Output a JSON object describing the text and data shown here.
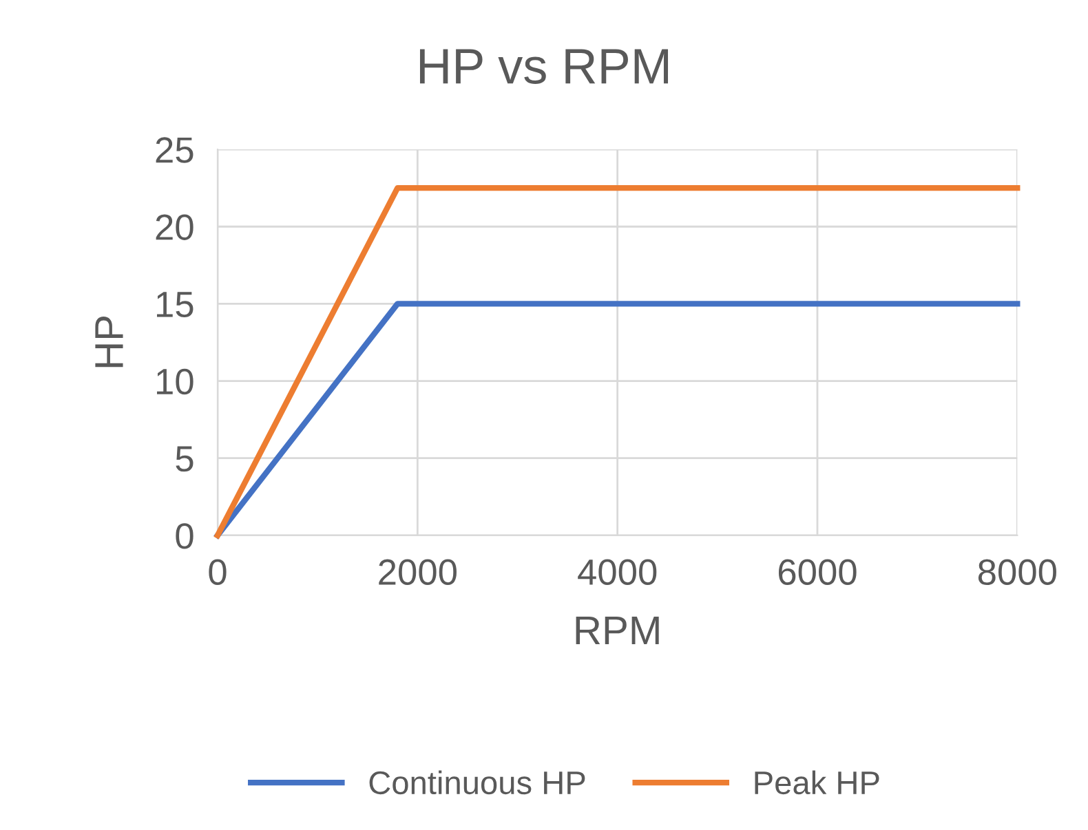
{
  "chart_data": {
    "type": "line",
    "title": "HP vs RPM",
    "xlabel": "RPM",
    "ylabel": "HP",
    "xlim": [
      0,
      8000
    ],
    "xticks": [
      0,
      2000,
      4000,
      6000,
      8000
    ],
    "ylim": [
      0,
      25
    ],
    "yticks": [
      0,
      5,
      10,
      15,
      20,
      25
    ],
    "grid": true,
    "legend": "bottom",
    "marker": "none",
    "line_style": "solid",
    "series": [
      {
        "name": "Continuous HP",
        "color": "#4472c4",
        "x": [
          0,
          1800,
          8000
        ],
        "values": [
          0,
          15,
          15
        ]
      },
      {
        "name": "Peak HP",
        "color": "#ed7d31",
        "x": [
          0,
          1800,
          8000
        ],
        "values": [
          0,
          22.5,
          22.5
        ]
      }
    ]
  }
}
